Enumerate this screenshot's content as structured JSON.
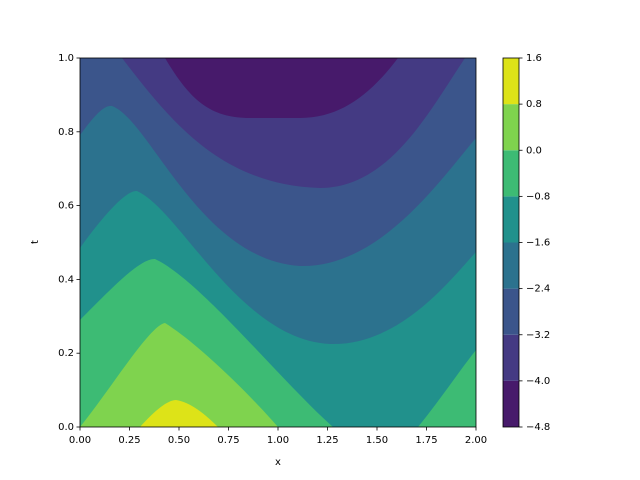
{
  "chart_data": {
    "type": "contour",
    "x_label": "x",
    "y_label": "t",
    "xlim": [
      0,
      2
    ],
    "ylim": [
      0,
      1
    ],
    "xticks": [
      {
        "value": 0,
        "label": "0.00"
      },
      {
        "value": 0.25,
        "label": "0.25"
      },
      {
        "value": 0.5,
        "label": "0.50"
      },
      {
        "value": 0.75,
        "label": "0.75"
      },
      {
        "value": 1,
        "label": "1.00"
      },
      {
        "value": 1.25,
        "label": "1.25"
      },
      {
        "value": 1.5,
        "label": "1.50"
      },
      {
        "value": 1.75,
        "label": "1.75"
      },
      {
        "value": 2,
        "label": "2.00"
      }
    ],
    "yticks": [
      {
        "value": 0,
        "label": "0.0"
      },
      0.2,
      0.4,
      0.6,
      0.8,
      {
        "value": 1,
        "label": "1.0"
      }
    ],
    "levels": [
      {
        "value": -4.8,
        "label": "−4.8"
      },
      {
        "value": -4.0,
        "label": "−4.0"
      },
      {
        "value": -3.2,
        "label": "−3.2"
      },
      {
        "value": -2.4,
        "label": "−2.4"
      },
      {
        "value": -1.6,
        "label": "−1.6"
      },
      {
        "value": -0.8,
        "label": "−0.8"
      },
      {
        "value": 0,
        "label": "0.0"
      },
      0.8,
      1.6
    ],
    "colors": [
      "#471a6b",
      "#443a83",
      "#3b558b",
      "#2c728e",
      "#21918c",
      "#3dbb74",
      "#7fd34e",
      "#dde318"
    ]
  }
}
